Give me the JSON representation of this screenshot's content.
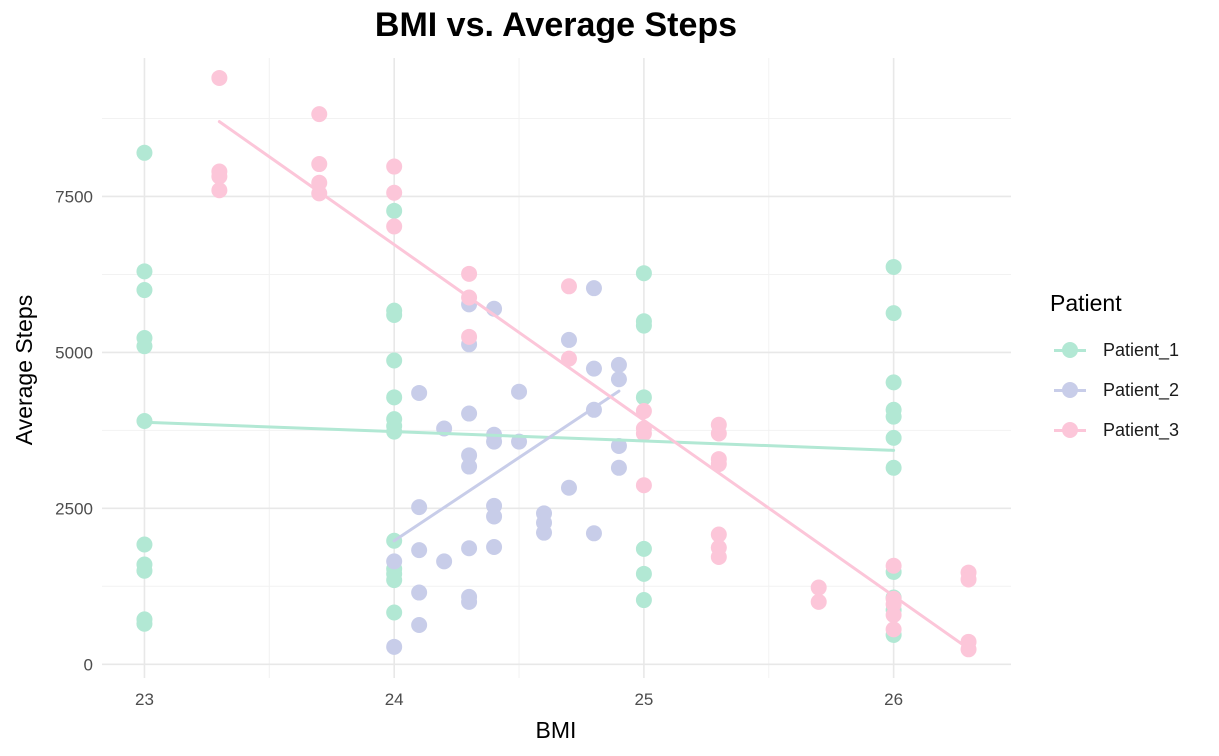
{
  "chart_data": {
    "type": "scatter",
    "title": "BMI vs. Average Steps",
    "xlabel": "BMI",
    "ylabel": "Average Steps",
    "xlim": [
      22.83,
      26.47
    ],
    "ylim": [
      -220,
      9720
    ],
    "x_ticks": [
      23,
      24,
      25,
      26
    ],
    "y_ticks": [
      0,
      2500,
      5000,
      7500
    ],
    "grid": true,
    "legend": {
      "title": "Patient",
      "placement": "right"
    },
    "series": [
      {
        "name": "Patient_1",
        "color": "#b2e8d4",
        "points": [
          [
            23,
            8200
          ],
          [
            23,
            6300
          ],
          [
            23,
            6000
          ],
          [
            23,
            5230
          ],
          [
            23,
            5100
          ],
          [
            23,
            3900
          ],
          [
            23,
            1920
          ],
          [
            23,
            1600
          ],
          [
            23,
            1500
          ],
          [
            23,
            720
          ],
          [
            23,
            650
          ],
          [
            24,
            7270
          ],
          [
            24,
            5670
          ],
          [
            24,
            5600
          ],
          [
            24,
            4870
          ],
          [
            24,
            4280
          ],
          [
            24,
            3930
          ],
          [
            24,
            3820
          ],
          [
            24,
            3730
          ],
          [
            24,
            1980
          ],
          [
            24,
            1530
          ],
          [
            24,
            1450
          ],
          [
            24,
            1350
          ],
          [
            24,
            830
          ],
          [
            25,
            6270
          ],
          [
            25,
            5500
          ],
          [
            25,
            5430
          ],
          [
            25,
            4280
          ],
          [
            25,
            1850
          ],
          [
            25,
            1450
          ],
          [
            25,
            1030
          ],
          [
            26,
            6370
          ],
          [
            26,
            5630
          ],
          [
            26,
            4520
          ],
          [
            26,
            4080
          ],
          [
            26,
            3970
          ],
          [
            26,
            3630
          ],
          [
            26,
            3150
          ],
          [
            26,
            1480
          ],
          [
            26,
            1070
          ],
          [
            26,
            870
          ],
          [
            26,
            470
          ]
        ],
        "trend": [
          [
            23,
            3880
          ],
          [
            26,
            3430
          ]
        ]
      },
      {
        "name": "Patient_2",
        "color": "#c8cde9",
        "points": [
          [
            24,
            1650
          ],
          [
            24,
            280
          ],
          [
            24.1,
            4350
          ],
          [
            24.1,
            2520
          ],
          [
            24.1,
            1830
          ],
          [
            24.1,
            1150
          ],
          [
            24.1,
            630
          ],
          [
            24.2,
            3780
          ],
          [
            24.2,
            1650
          ],
          [
            24.3,
            5770
          ],
          [
            24.3,
            5130
          ],
          [
            24.3,
            4020
          ],
          [
            24.3,
            3350
          ],
          [
            24.3,
            3170
          ],
          [
            24.3,
            1860
          ],
          [
            24.3,
            1080
          ],
          [
            24.3,
            1000
          ],
          [
            24.4,
            5700
          ],
          [
            24.4,
            3680
          ],
          [
            24.4,
            3570
          ],
          [
            24.4,
            2540
          ],
          [
            24.4,
            2370
          ],
          [
            24.4,
            1880
          ],
          [
            24.5,
            4370
          ],
          [
            24.5,
            3570
          ],
          [
            24.6,
            2420
          ],
          [
            24.6,
            2270
          ],
          [
            24.6,
            2110
          ],
          [
            24.7,
            5200
          ],
          [
            24.7,
            2830
          ],
          [
            24.8,
            6030
          ],
          [
            24.8,
            4740
          ],
          [
            24.8,
            4080
          ],
          [
            24.8,
            2100
          ],
          [
            24.9,
            4800
          ],
          [
            24.9,
            4570
          ],
          [
            24.9,
            3500
          ],
          [
            24.9,
            3150
          ]
        ],
        "trend": [
          [
            24,
            1980
          ],
          [
            24.9,
            4380
          ]
        ]
      },
      {
        "name": "Patient_3",
        "color": "#fcc6d9",
        "points": [
          [
            23.3,
            9400
          ],
          [
            23.3,
            7900
          ],
          [
            23.3,
            7820
          ],
          [
            23.3,
            7600
          ],
          [
            23.7,
            8820
          ],
          [
            23.7,
            8020
          ],
          [
            23.7,
            7720
          ],
          [
            23.7,
            7550
          ],
          [
            24,
            7980
          ],
          [
            24,
            7560
          ],
          [
            24,
            7020
          ],
          [
            24.3,
            6260
          ],
          [
            24.3,
            5880
          ],
          [
            24.3,
            5250
          ],
          [
            24.7,
            6060
          ],
          [
            24.7,
            4900
          ],
          [
            25,
            4060
          ],
          [
            25,
            3780
          ],
          [
            25,
            3700
          ],
          [
            25,
            2870
          ],
          [
            25.3,
            3840
          ],
          [
            25.3,
            3700
          ],
          [
            25.3,
            3290
          ],
          [
            25.3,
            3210
          ],
          [
            25.3,
            2080
          ],
          [
            25.3,
            1870
          ],
          [
            25.3,
            1720
          ],
          [
            25.7,
            1230
          ],
          [
            25.7,
            1000
          ],
          [
            26,
            1580
          ],
          [
            26,
            1050
          ],
          [
            26,
            960
          ],
          [
            26,
            790
          ],
          [
            26,
            560
          ],
          [
            26.3,
            1470
          ],
          [
            26.3,
            1360
          ],
          [
            26.3,
            360
          ],
          [
            26.3,
            240
          ]
        ],
        "trend": [
          [
            23.3,
            8700
          ],
          [
            26.3,
            250
          ]
        ]
      }
    ]
  }
}
